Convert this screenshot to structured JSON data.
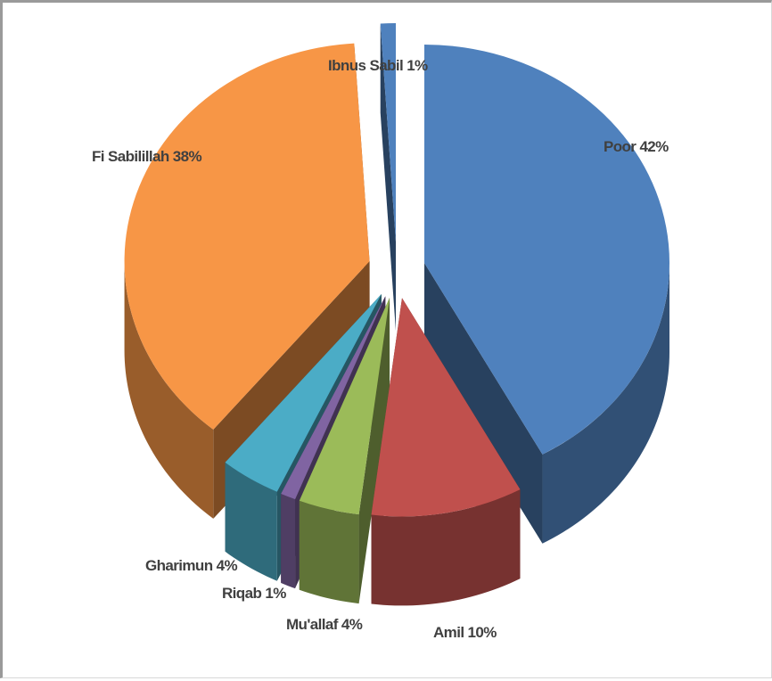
{
  "chart_data": {
    "type": "pie",
    "style": "3d-exploded",
    "title": "",
    "categories": [
      "Poor",
      "Amil",
      "Mu'allaf",
      "Riqab",
      "Gharimun",
      "Fi Sabilillah",
      "Ibnus Sabil"
    ],
    "values": [
      42,
      10,
      4,
      1,
      4,
      38,
      1
    ],
    "labels": [
      "Poor 42%",
      "Amil 10%",
      "Mu'allaf 4%",
      "Riqab 1%",
      "Gharimun 4%",
      "Fi Sabilillah 38%",
      "Ibnus Sabil 1%"
    ],
    "colors": [
      "#4f81bd",
      "#c0504d",
      "#9bbb59",
      "#8064a2",
      "#4bacc6",
      "#f79646",
      "#4f81bd"
    ],
    "legend": "none"
  }
}
